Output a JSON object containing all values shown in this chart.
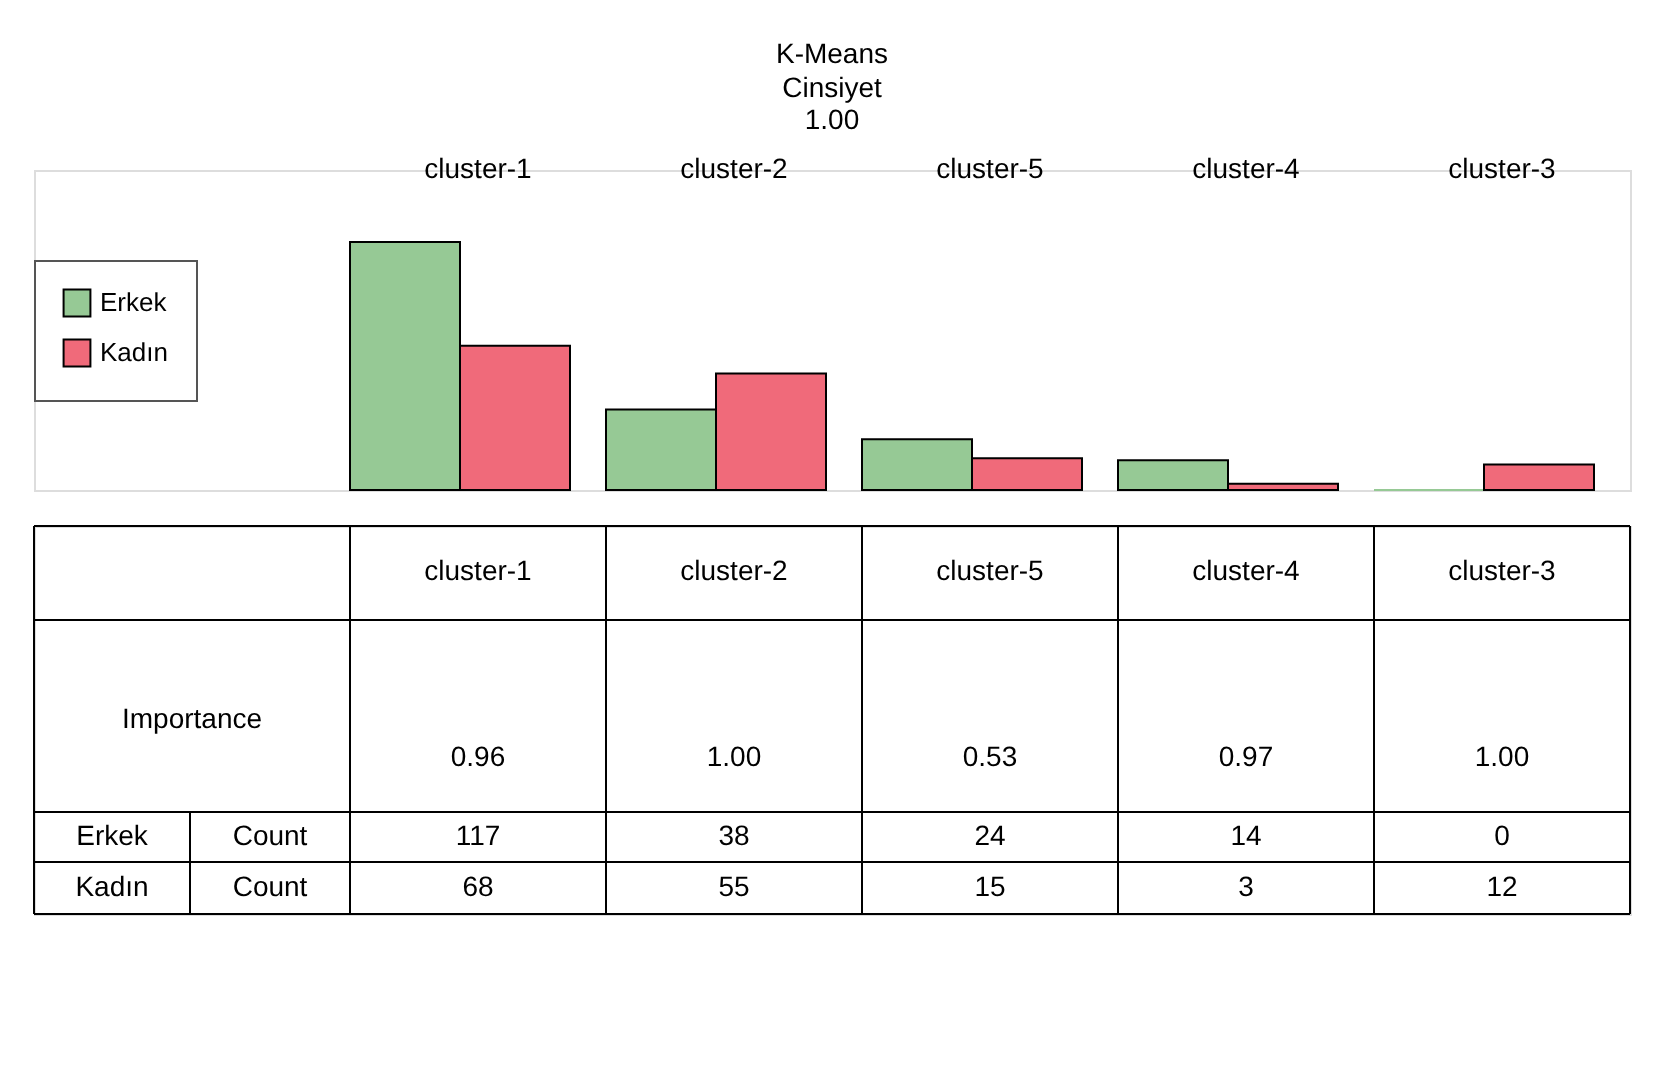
{
  "chart_data": {
    "type": "bar",
    "title": "K-Means",
    "subtitle": "Cinsiyet",
    "categories": [
      "cluster-1",
      "cluster-2",
      "cluster-5",
      "cluster-4",
      "cluster-3"
    ],
    "series": [
      {
        "name": "Erkek",
        "color": "#96c995",
        "values": [
          117,
          38,
          24,
          14,
          0
        ]
      },
      {
        "name": "Kadın",
        "color": "#f06a7a",
        "values": [
          68,
          55,
          15,
          3,
          12
        ]
      }
    ],
    "data_labels": true,
    "legend": "left",
    "annotations": [
      "1.00",
      "Importance",
      "0.96",
      "1.00",
      "0.53",
      "0.97",
      "1.00",
      "Count",
      "Count"
    ]
  }
}
